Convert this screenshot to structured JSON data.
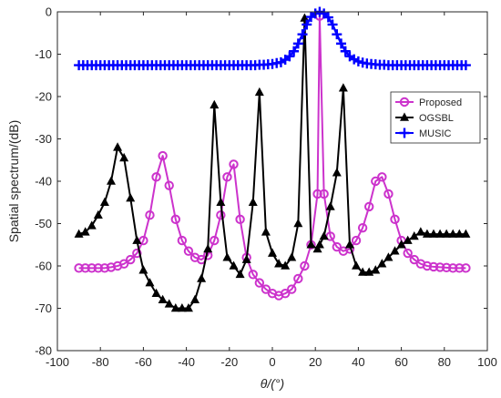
{
  "chart_data": {
    "type": "line",
    "xlabel": "θ/(°)",
    "ylabel": "Spatial spectrum/(dB)",
    "xlim": [
      -100,
      100
    ],
    "ylim": [
      -80,
      0
    ],
    "xticks": [
      -100,
      -80,
      -60,
      -40,
      -20,
      0,
      20,
      40,
      60,
      80,
      100
    ],
    "yticks": [
      0,
      -10,
      -20,
      -30,
      -40,
      -50,
      -60,
      -70,
      -80
    ],
    "xtick_labels": [
      "-100",
      "-80",
      "-60",
      "-40",
      "-20",
      "0",
      "20",
      "40",
      "60",
      "80",
      "100"
    ],
    "ytick_labels": [
      "0",
      "-10",
      "-20",
      "-30",
      "-40",
      "-50",
      "-60",
      "-70",
      "-80"
    ],
    "grid": false,
    "legend_position": "upper-right",
    "series": [
      {
        "name": "Proposed",
        "color": "#cc33cc",
        "marker": "circle",
        "x": [
          -90,
          -87,
          -84,
          -81,
          -78,
          -75,
          -72,
          -69,
          -66,
          -63,
          -60,
          -57,
          -54,
          -51,
          -48,
          -45,
          -42,
          -39,
          -36,
          -33,
          -30,
          -27,
          -24,
          -21,
          -18,
          -15,
          -12,
          -9,
          -6,
          -3,
          0,
          3,
          6,
          9,
          12,
          15,
          18,
          21,
          22,
          24,
          27,
          30,
          33,
          36,
          39,
          42,
          45,
          48,
          51,
          54,
          57,
          60,
          63,
          66,
          69,
          72,
          75,
          78,
          81,
          84,
          87,
          90
        ],
        "y": [
          -60.5,
          -60.5,
          -60.5,
          -60.5,
          -60.5,
          -60.3,
          -60,
          -59.5,
          -58.5,
          -57,
          -54,
          -48,
          -39,
          -34,
          -41,
          -49,
          -54,
          -56.5,
          -58,
          -58.5,
          -57.5,
          -54,
          -48,
          -39,
          -36,
          -49,
          -58,
          -62,
          -64,
          -65.5,
          -66.5,
          -67,
          -66.5,
          -65.5,
          -63,
          -60,
          -55,
          -43,
          -1,
          -43,
          -53,
          -55.5,
          -56.5,
          -56,
          -54,
          -51,
          -46,
          -40,
          -39,
          -43,
          -49,
          -54,
          -57,
          -58.5,
          -59.5,
          -60,
          -60.2,
          -60.3,
          -60.4,
          -60.5,
          -60.5,
          -60.5
        ]
      },
      {
        "name": "OGSBL",
        "color": "#000000",
        "marker": "triangle",
        "x": [
          -90,
          -87,
          -84,
          -81,
          -78,
          -75,
          -72,
          -69,
          -66,
          -63,
          -60,
          -57,
          -54,
          -51,
          -48,
          -45,
          -42,
          -39,
          -36,
          -33,
          -30,
          -27,
          -24,
          -21,
          -18,
          -15,
          -12,
          -9,
          -6,
          -3,
          0,
          3,
          6,
          9,
          12,
          15,
          18,
          21,
          22,
          24,
          27,
          30,
          33,
          36,
          39,
          42,
          45,
          48,
          51,
          54,
          57,
          60,
          63,
          66,
          69,
          72,
          75,
          78,
          81,
          84,
          87,
          90
        ],
        "y": [
          -52.5,
          -52,
          -50.5,
          -48,
          -45,
          -40,
          -32,
          -34.5,
          -44,
          -54,
          -61,
          -64,
          -66.5,
          -68,
          -69,
          -70,
          -70,
          -70,
          -68,
          -63,
          -56,
          -22,
          -45,
          -58,
          -60,
          -62,
          -58.5,
          -45,
          -19,
          -52,
          -57,
          -59.5,
          -60,
          -58,
          -50,
          -1.5,
          -55,
          -56,
          -55,
          -53,
          -46,
          -38,
          -18,
          -55,
          -60,
          -61.5,
          -61.5,
          -61,
          -59.5,
          -58,
          -56.5,
          -55,
          -54,
          -53,
          -52,
          -52.5,
          -52.5,
          -52.5,
          -52.5,
          -52.5,
          -52.5,
          -52.5
        ]
      },
      {
        "name": "MUSIC",
        "color": "#0000ff",
        "marker": "plus",
        "x": [
          -90,
          -88,
          -86,
          -84,
          -82,
          -80,
          -78,
          -76,
          -74,
          -72,
          -70,
          -68,
          -66,
          -64,
          -62,
          -60,
          -58,
          -56,
          -54,
          -52,
          -50,
          -48,
          -46,
          -44,
          -42,
          -40,
          -38,
          -36,
          -34,
          -32,
          -30,
          -28,
          -26,
          -24,
          -22,
          -20,
          -18,
          -16,
          -14,
          -12,
          -10,
          -8,
          -6,
          -4,
          -2,
          0,
          2,
          4,
          6,
          8,
          10,
          12,
          14,
          16,
          18,
          20,
          22,
          24,
          26,
          28,
          30,
          32,
          34,
          36,
          38,
          40,
          42,
          44,
          46,
          48,
          50,
          52,
          54,
          56,
          58,
          60,
          62,
          64,
          66,
          68,
          70,
          72,
          74,
          76,
          78,
          80,
          82,
          84,
          86,
          88,
          90
        ],
        "y": [
          -12.6,
          -12.6,
          -12.6,
          -12.6,
          -12.6,
          -12.6,
          -12.6,
          -12.6,
          -12.6,
          -12.6,
          -12.6,
          -12.6,
          -12.6,
          -12.6,
          -12.6,
          -12.6,
          -12.6,
          -12.6,
          -12.6,
          -12.6,
          -12.6,
          -12.6,
          -12.6,
          -12.6,
          -12.6,
          -12.6,
          -12.6,
          -12.6,
          -12.6,
          -12.6,
          -12.6,
          -12.6,
          -12.6,
          -12.6,
          -12.6,
          -12.6,
          -12.6,
          -12.6,
          -12.6,
          -12.6,
          -12.6,
          -12.6,
          -12.5,
          -12.5,
          -12.4,
          -12.3,
          -12.1,
          -11.9,
          -11.3,
          -10.5,
          -9.3,
          -7.5,
          -5.3,
          -3,
          -1.2,
          -0.4,
          0,
          -0.4,
          -1.3,
          -3,
          -5.3,
          -7.5,
          -9.3,
          -10.5,
          -11.2,
          -11.7,
          -12,
          -12.2,
          -12.3,
          -12.4,
          -12.5,
          -12.5,
          -12.6,
          -12.6,
          -12.6,
          -12.6,
          -12.6,
          -12.6,
          -12.6,
          -12.6,
          -12.6,
          -12.6,
          -12.6,
          -12.6,
          -12.6,
          -12.6,
          -12.6,
          -12.6,
          -12.6,
          -12.6,
          -12.6
        ]
      }
    ]
  }
}
